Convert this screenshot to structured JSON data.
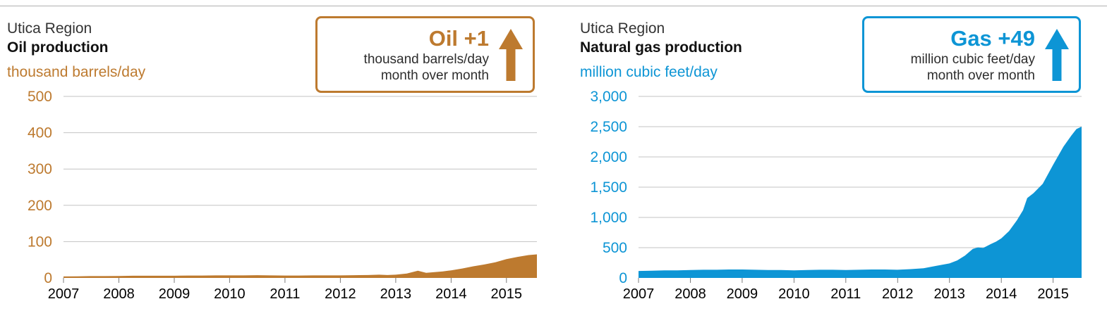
{
  "style": {
    "grid_color": "#c3c3c3",
    "tick_color": "#7b7b7b",
    "top_rule_color": "#b0b0b0",
    "xlabel_color": "#000000"
  },
  "chart_data": [
    {
      "type": "area",
      "region": "Utica Region",
      "title": "Oil production",
      "unit_label": "thousand barrels/day",
      "badge": {
        "headline": "Oil +1",
        "line1": "thousand barrels/day",
        "line2": "month over month",
        "arrow_direction": "up"
      },
      "accent_color": "#bd7a2f",
      "fill_color": "#bd7a2f",
      "ylabel": "thousand barrels/day",
      "xlim": [
        2007,
        2015.55
      ],
      "ylim": [
        0,
        500
      ],
      "grid": true,
      "legend": "none",
      "yticks": [
        {
          "value": 0,
          "label": "0"
        },
        {
          "value": 100,
          "label": "100"
        },
        {
          "value": 200,
          "label": "200"
        },
        {
          "value": 300,
          "label": "300"
        },
        {
          "value": 400,
          "label": "400"
        },
        {
          "value": 500,
          "label": "500"
        }
      ],
      "xticks": [
        2007,
        2008,
        2009,
        2010,
        2011,
        2012,
        2013,
        2014,
        2015
      ],
      "series": [
        {
          "name": "Oil production (thousand barrels/day)",
          "points": [
            [
              2007.0,
              4
            ],
            [
              2007.25,
              4.5
            ],
            [
              2007.5,
              5
            ],
            [
              2007.75,
              5
            ],
            [
              2008.0,
              5.5
            ],
            [
              2008.25,
              6
            ],
            [
              2008.5,
              6
            ],
            [
              2008.75,
              6
            ],
            [
              2009.0,
              6
            ],
            [
              2009.25,
              6.5
            ],
            [
              2009.5,
              6.5
            ],
            [
              2009.75,
              7
            ],
            [
              2010.0,
              7
            ],
            [
              2010.25,
              7
            ],
            [
              2010.5,
              7.5
            ],
            [
              2010.75,
              7
            ],
            [
              2011.0,
              6.5
            ],
            [
              2011.25,
              6.5
            ],
            [
              2011.5,
              7
            ],
            [
              2011.75,
              7
            ],
            [
              2012.0,
              7
            ],
            [
              2012.25,
              7.5
            ],
            [
              2012.5,
              8
            ],
            [
              2012.7,
              9
            ],
            [
              2012.85,
              8
            ],
            [
              2013.0,
              9
            ],
            [
              2013.2,
              12
            ],
            [
              2013.4,
              20
            ],
            [
              2013.55,
              14
            ],
            [
              2013.7,
              16
            ],
            [
              2013.85,
              18
            ],
            [
              2014.0,
              21
            ],
            [
              2014.2,
              26
            ],
            [
              2014.4,
              32
            ],
            [
              2014.6,
              37
            ],
            [
              2014.8,
              43
            ],
            [
              2015.0,
              52
            ],
            [
              2015.2,
              58
            ],
            [
              2015.4,
              63
            ],
            [
              2015.55,
              65
            ]
          ]
        }
      ]
    },
    {
      "type": "area",
      "region": "Utica Region",
      "title": "Natural gas production",
      "unit_label": "million cubic feet/day",
      "badge": {
        "headline": "Gas +49",
        "line1": "million cubic feet/day",
        "line2": "month over month",
        "arrow_direction": "up"
      },
      "accent_color": "#0d95d5",
      "fill_color": "#0d95d5",
      "ylabel": "million cubic feet/day",
      "xlim": [
        2007,
        2015.55
      ],
      "ylim": [
        0,
        3000
      ],
      "grid": true,
      "legend": "none",
      "yticks": [
        {
          "value": 0,
          "label": "0"
        },
        {
          "value": 500,
          "label": "500"
        },
        {
          "value": 1000,
          "label": "1,000"
        },
        {
          "value": 1500,
          "label": "1,500"
        },
        {
          "value": 2000,
          "label": "2,000"
        },
        {
          "value": 2500,
          "label": "2,500"
        },
        {
          "value": 3000,
          "label": "3,000"
        }
      ],
      "xticks": [
        2007,
        2008,
        2009,
        2010,
        2011,
        2012,
        2013,
        2014,
        2015
      ],
      "series": [
        {
          "name": "Natural gas production (million cubic feet/day)",
          "points": [
            [
              2007.0,
              115
            ],
            [
              2007.25,
              120
            ],
            [
              2007.5,
              125
            ],
            [
              2007.75,
              125
            ],
            [
              2008.0,
              130
            ],
            [
              2008.25,
              135
            ],
            [
              2008.5,
              135
            ],
            [
              2008.75,
              140
            ],
            [
              2009.0,
              140
            ],
            [
              2009.25,
              135
            ],
            [
              2009.5,
              130
            ],
            [
              2009.75,
              130
            ],
            [
              2010.0,
              125
            ],
            [
              2010.25,
              130
            ],
            [
              2010.5,
              135
            ],
            [
              2010.75,
              135
            ],
            [
              2011.0,
              130
            ],
            [
              2011.25,
              135
            ],
            [
              2011.5,
              140
            ],
            [
              2011.75,
              140
            ],
            [
              2012.0,
              135
            ],
            [
              2012.25,
              145
            ],
            [
              2012.5,
              160
            ],
            [
              2012.75,
              200
            ],
            [
              2013.0,
              240
            ],
            [
              2013.15,
              290
            ],
            [
              2013.3,
              370
            ],
            [
              2013.45,
              480
            ],
            [
              2013.55,
              505
            ],
            [
              2013.65,
              495
            ],
            [
              2013.8,
              560
            ],
            [
              2013.9,
              600
            ],
            [
              2014.0,
              655
            ],
            [
              2014.15,
              775
            ],
            [
              2014.3,
              950
            ],
            [
              2014.42,
              1120
            ],
            [
              2014.5,
              1320
            ],
            [
              2014.62,
              1400
            ],
            [
              2014.8,
              1555
            ],
            [
              2015.0,
              1870
            ],
            [
              2015.2,
              2170
            ],
            [
              2015.35,
              2350
            ],
            [
              2015.45,
              2460
            ],
            [
              2015.55,
              2500
            ]
          ]
        }
      ]
    }
  ]
}
